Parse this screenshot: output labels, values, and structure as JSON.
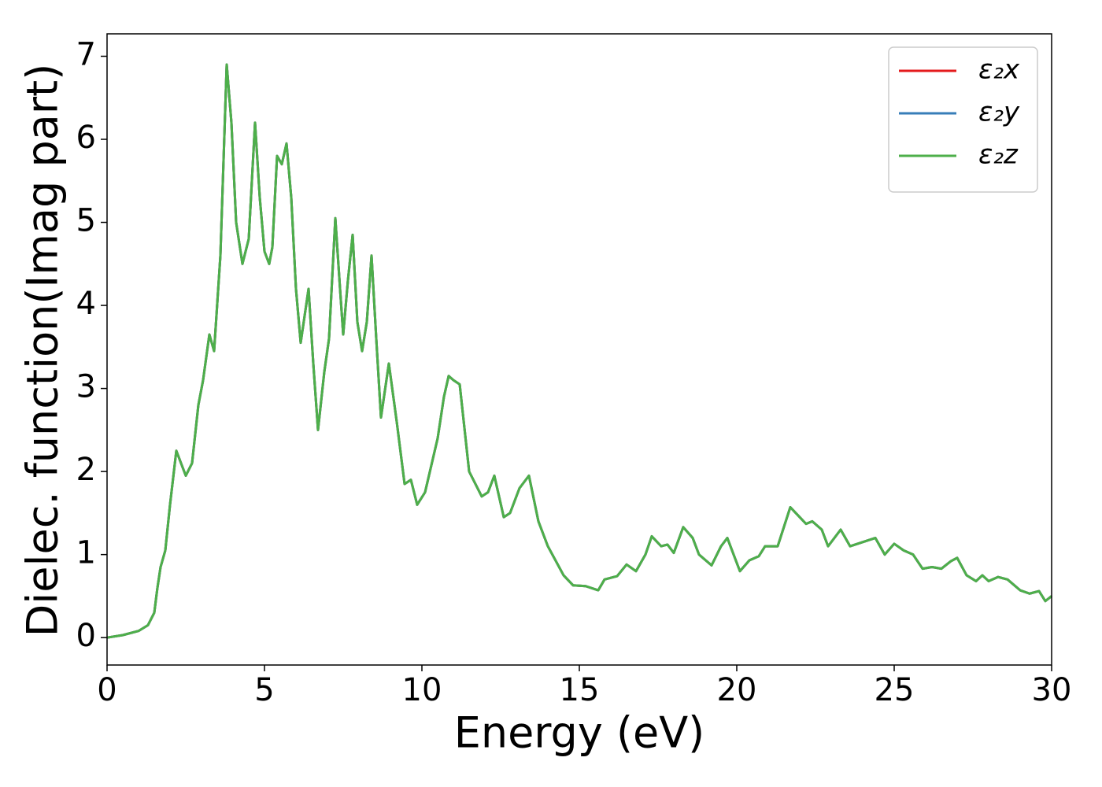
{
  "chart_data": {
    "type": "line",
    "xlabel": "Energy (eV)",
    "ylabel": "Dielec. function(Imag part)",
    "x": [
      0,
      0.5,
      1.0,
      1.3,
      1.5,
      1.6,
      1.7,
      1.85,
      2.0,
      2.2,
      2.4,
      2.5,
      2.7,
      2.9,
      3.05,
      3.25,
      3.4,
      3.6,
      3.8,
      3.95,
      4.1,
      4.3,
      4.5,
      4.7,
      4.85,
      5.0,
      5.15,
      5.25,
      5.4,
      5.55,
      5.7,
      5.85,
      6.0,
      6.15,
      6.4,
      6.55,
      6.7,
      6.9,
      7.05,
      7.25,
      7.4,
      7.5,
      7.65,
      7.8,
      7.95,
      8.1,
      8.25,
      8.4,
      8.55,
      8.7,
      8.95,
      9.2,
      9.45,
      9.65,
      9.85,
      10.1,
      10.5,
      10.7,
      10.85,
      11.0,
      11.2,
      11.5,
      11.9,
      12.1,
      12.3,
      12.6,
      12.8,
      13.1,
      13.4,
      13.7,
      14.0,
      14.5,
      14.8,
      15.2,
      15.6,
      15.8,
      16.2,
      16.5,
      16.8,
      17.1,
      17.3,
      17.6,
      17.8,
      18.0,
      18.3,
      18.6,
      18.8,
      19.2,
      19.5,
      19.7,
      20.1,
      20.4,
      20.7,
      20.9,
      21.3,
      21.7,
      22.0,
      22.2,
      22.4,
      22.7,
      22.9,
      23.3,
      23.6,
      24.0,
      24.4,
      24.7,
      25.0,
      25.3,
      25.6,
      25.9,
      26.2,
      26.5,
      26.8,
      27.0,
      27.3,
      27.6,
      27.8,
      28.0,
      28.3,
      28.6,
      29.0,
      29.3,
      29.6,
      29.8,
      30.0
    ],
    "series": [
      {
        "name": "ε₂x",
        "color": "#e41a1c",
        "values": [
          0.0,
          0.03,
          0.08,
          0.15,
          0.3,
          0.6,
          0.85,
          1.05,
          1.6,
          2.25,
          2.05,
          1.95,
          2.1,
          2.8,
          3.1,
          3.65,
          3.45,
          4.6,
          6.9,
          6.2,
          5.0,
          4.5,
          4.8,
          6.2,
          5.3,
          4.65,
          4.5,
          4.7,
          5.8,
          5.7,
          5.95,
          5.3,
          4.2,
          3.55,
          4.2,
          3.3,
          2.5,
          3.2,
          3.6,
          5.05,
          4.2,
          3.65,
          4.3,
          4.85,
          3.8,
          3.45,
          3.8,
          4.6,
          3.6,
          2.65,
          3.3,
          2.6,
          1.85,
          1.9,
          1.6,
          1.75,
          2.4,
          2.9,
          3.15,
          3.1,
          3.05,
          2.0,
          1.7,
          1.75,
          1.95,
          1.45,
          1.5,
          1.8,
          1.95,
          1.4,
          1.1,
          0.75,
          0.63,
          0.62,
          0.57,
          0.7,
          0.74,
          0.88,
          0.8,
          1.0,
          1.22,
          1.1,
          1.12,
          1.02,
          1.33,
          1.2,
          1.0,
          0.87,
          1.1,
          1.2,
          0.8,
          0.93,
          0.98,
          1.1,
          1.1,
          1.57,
          1.45,
          1.37,
          1.4,
          1.3,
          1.1,
          1.3,
          1.1,
          1.15,
          1.2,
          1.0,
          1.13,
          1.05,
          1.0,
          0.83,
          0.85,
          0.83,
          0.92,
          0.96,
          0.75,
          0.68,
          0.75,
          0.68,
          0.73,
          0.7,
          0.57,
          0.53,
          0.56,
          0.44,
          0.5
        ]
      },
      {
        "name": "ε₂y",
        "color": "#377eb8",
        "values": [
          0.0,
          0.03,
          0.08,
          0.15,
          0.3,
          0.6,
          0.85,
          1.05,
          1.6,
          2.25,
          2.05,
          1.95,
          2.1,
          2.8,
          3.1,
          3.65,
          3.45,
          4.6,
          6.9,
          6.2,
          5.0,
          4.5,
          4.8,
          6.2,
          5.3,
          4.65,
          4.5,
          4.7,
          5.8,
          5.7,
          5.95,
          5.3,
          4.2,
          3.55,
          4.2,
          3.3,
          2.5,
          3.2,
          3.6,
          5.05,
          4.2,
          3.65,
          4.3,
          4.85,
          3.8,
          3.45,
          3.8,
          4.6,
          3.6,
          2.65,
          3.3,
          2.6,
          1.85,
          1.9,
          1.6,
          1.75,
          2.4,
          2.9,
          3.15,
          3.1,
          3.05,
          2.0,
          1.7,
          1.75,
          1.95,
          1.45,
          1.5,
          1.8,
          1.95,
          1.4,
          1.1,
          0.75,
          0.63,
          0.62,
          0.57,
          0.7,
          0.74,
          0.88,
          0.8,
          1.0,
          1.22,
          1.1,
          1.12,
          1.02,
          1.33,
          1.2,
          1.0,
          0.87,
          1.1,
          1.2,
          0.8,
          0.93,
          0.98,
          1.1,
          1.1,
          1.57,
          1.45,
          1.37,
          1.4,
          1.3,
          1.1,
          1.3,
          1.1,
          1.15,
          1.2,
          1.0,
          1.13,
          1.05,
          1.0,
          0.83,
          0.85,
          0.83,
          0.92,
          0.96,
          0.75,
          0.68,
          0.75,
          0.68,
          0.73,
          0.7,
          0.57,
          0.53,
          0.56,
          0.44,
          0.5
        ]
      },
      {
        "name": "ε₂z",
        "color": "#4daf4a",
        "values": [
          0.0,
          0.03,
          0.08,
          0.15,
          0.3,
          0.6,
          0.85,
          1.05,
          1.6,
          2.25,
          2.05,
          1.95,
          2.1,
          2.8,
          3.1,
          3.65,
          3.45,
          4.6,
          6.9,
          6.2,
          5.0,
          4.5,
          4.8,
          6.2,
          5.3,
          4.65,
          4.5,
          4.7,
          5.8,
          5.7,
          5.95,
          5.3,
          4.2,
          3.55,
          4.2,
          3.3,
          2.5,
          3.2,
          3.6,
          5.05,
          4.2,
          3.65,
          4.3,
          4.85,
          3.8,
          3.45,
          3.8,
          4.6,
          3.6,
          2.65,
          3.3,
          2.6,
          1.85,
          1.9,
          1.6,
          1.75,
          2.4,
          2.9,
          3.15,
          3.1,
          3.05,
          2.0,
          1.7,
          1.75,
          1.95,
          1.45,
          1.5,
          1.8,
          1.95,
          1.4,
          1.1,
          0.75,
          0.63,
          0.62,
          0.57,
          0.7,
          0.74,
          0.88,
          0.8,
          1.0,
          1.22,
          1.1,
          1.12,
          1.02,
          1.33,
          1.2,
          1.0,
          0.87,
          1.1,
          1.2,
          0.8,
          0.93,
          0.98,
          1.1,
          1.1,
          1.57,
          1.45,
          1.37,
          1.4,
          1.3,
          1.1,
          1.3,
          1.1,
          1.15,
          1.2,
          1.0,
          1.13,
          1.05,
          1.0,
          0.83,
          0.85,
          0.83,
          0.92,
          0.96,
          0.75,
          0.68,
          0.75,
          0.68,
          0.73,
          0.7,
          0.57,
          0.53,
          0.56,
          0.44,
          0.5
        ]
      }
    ],
    "xlim": [
      0,
      30
    ],
    "xticks": [
      0,
      5,
      10,
      15,
      20,
      25,
      30
    ],
    "ylim": [
      -0.33,
      7.27
    ],
    "yticks": [
      0,
      1,
      2,
      3,
      4,
      5,
      6,
      7
    ],
    "grid": false,
    "legend": "upper right"
  }
}
